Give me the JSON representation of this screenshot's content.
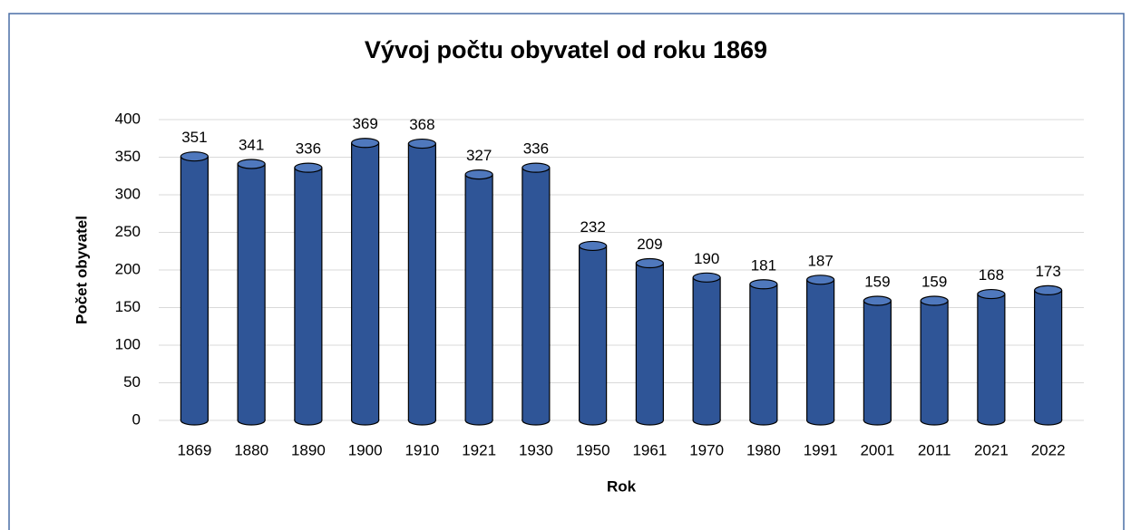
{
  "chart_data": {
    "type": "bar",
    "title": "Vývoj počtu obyvatel od roku 1869",
    "x_label": "Rok",
    "y_label": "Počet obyvatel",
    "categories": [
      "1869",
      "1880",
      "1890",
      "1900",
      "1910",
      "1921",
      "1930",
      "1950",
      "1961",
      "1970",
      "1980",
      "1991",
      "2001",
      "2011",
      "2021",
      "2022"
    ],
    "values": [
      351,
      341,
      336,
      369,
      368,
      327,
      336,
      232,
      209,
      190,
      181,
      187,
      159,
      159,
      168,
      173
    ],
    "color": "#2f5597",
    "ylim": [
      0,
      400
    ],
    "yticks": [
      0,
      50,
      100,
      150,
      200,
      250,
      300,
      350,
      400
    ],
    "grid": true
  }
}
